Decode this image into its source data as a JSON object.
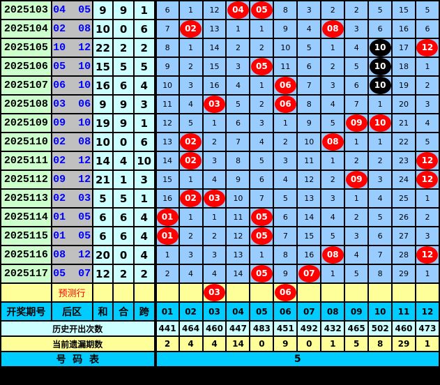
{
  "colors": {
    "period_bg": "#ccffcc",
    "back_bg": "#c0c0c0",
    "back_text": "#0000ff",
    "sum_bg": "#ccffff",
    "cell_bg": "#99ccff",
    "ball_red": "#ff0000",
    "ball_black": "#000000",
    "predict_bg": "#ffff99",
    "header_bg": "#00ccff"
  },
  "rows": [
    {
      "period": "2025103",
      "back": "04  05",
      "he": "9",
      "hezhi": "9",
      "kua": "1",
      "cells": [
        "6",
        "1",
        "12",
        "04",
        "05",
        "8",
        "3",
        "2",
        "2",
        "5",
        "15",
        "5"
      ],
      "hits": [
        "04",
        "05"
      ],
      "black_hits": []
    },
    {
      "period": "2025104",
      "back": "02  08",
      "he": "10",
      "hezhi": "0",
      "kua": "6",
      "cells": [
        "7",
        "02",
        "13",
        "1",
        "1",
        "9",
        "4",
        "08",
        "3",
        "6",
        "16",
        "6"
      ],
      "hits": [
        "02",
        "08"
      ],
      "black_hits": []
    },
    {
      "period": "2025105",
      "back": "10  12",
      "he": "22",
      "hezhi": "2",
      "kua": "2",
      "cells": [
        "8",
        "1",
        "14",
        "2",
        "2",
        "10",
        "5",
        "1",
        "4",
        "10",
        "17",
        "12"
      ],
      "hits": [
        "12"
      ],
      "black_hits": [
        "10"
      ]
    },
    {
      "period": "2025106",
      "back": "05  10",
      "he": "15",
      "hezhi": "5",
      "kua": "5",
      "cells": [
        "9",
        "2",
        "15",
        "3",
        "05",
        "11",
        "6",
        "2",
        "5",
        "10",
        "18",
        "1"
      ],
      "hits": [
        "05"
      ],
      "black_hits": [
        "10"
      ]
    },
    {
      "period": "2025107",
      "back": "06  10",
      "he": "16",
      "hezhi": "6",
      "kua": "4",
      "cells": [
        "10",
        "3",
        "16",
        "4",
        "1",
        "06",
        "7",
        "3",
        "6",
        "10",
        "19",
        "2"
      ],
      "hits": [
        "06"
      ],
      "black_hits": [
        "10"
      ]
    },
    {
      "period": "2025108",
      "back": "03  06",
      "he": "9",
      "hezhi": "9",
      "kua": "3",
      "cells": [
        "11",
        "4",
        "03",
        "5",
        "2",
        "06",
        "8",
        "4",
        "7",
        "1",
        "20",
        "3"
      ],
      "hits": [
        "03",
        "06"
      ],
      "black_hits": []
    },
    {
      "period": "2025109",
      "back": "09  10",
      "he": "19",
      "hezhi": "9",
      "kua": "1",
      "cells": [
        "12",
        "5",
        "1",
        "6",
        "3",
        "1",
        "9",
        "5",
        "09",
        "10",
        "21",
        "4"
      ],
      "hits": [
        "09",
        "10"
      ],
      "black_hits": []
    },
    {
      "period": "2025110",
      "back": "02  08",
      "he": "10",
      "hezhi": "0",
      "kua": "6",
      "cells": [
        "13",
        "02",
        "2",
        "7",
        "4",
        "2",
        "10",
        "08",
        "1",
        "1",
        "22",
        "5"
      ],
      "hits": [
        "02",
        "08"
      ],
      "black_hits": []
    },
    {
      "period": "2025111",
      "back": "02  12",
      "he": "14",
      "hezhi": "4",
      "kua": "10",
      "cells": [
        "14",
        "02",
        "3",
        "8",
        "5",
        "3",
        "11",
        "1",
        "2",
        "2",
        "23",
        "12"
      ],
      "hits": [
        "02",
        "12"
      ],
      "black_hits": []
    },
    {
      "period": "2025112",
      "back": "09  12",
      "he": "21",
      "hezhi": "1",
      "kua": "3",
      "cells": [
        "15",
        "1",
        "4",
        "9",
        "6",
        "4",
        "12",
        "2",
        "09",
        "3",
        "24",
        "12"
      ],
      "hits": [
        "09",
        "12"
      ],
      "black_hits": []
    },
    {
      "period": "2025113",
      "back": "02  03",
      "he": "5",
      "hezhi": "5",
      "kua": "1",
      "cells": [
        "16",
        "02",
        "03",
        "10",
        "7",
        "5",
        "13",
        "3",
        "1",
        "4",
        "25",
        "1"
      ],
      "hits": [
        "02",
        "03"
      ],
      "black_hits": []
    },
    {
      "period": "2025114",
      "back": "01  05",
      "he": "6",
      "hezhi": "6",
      "kua": "4",
      "cells": [
        "01",
        "1",
        "1",
        "11",
        "05",
        "6",
        "14",
        "4",
        "2",
        "5",
        "26",
        "2"
      ],
      "hits": [
        "01",
        "05"
      ],
      "black_hits": []
    },
    {
      "period": "2025115",
      "back": "01  05",
      "he": "6",
      "hezhi": "6",
      "kua": "4",
      "cells": [
        "01",
        "2",
        "2",
        "12",
        "05",
        "7",
        "15",
        "5",
        "3",
        "6",
        "27",
        "3"
      ],
      "hits": [
        "01",
        "05"
      ],
      "black_hits": []
    },
    {
      "period": "2025116",
      "back": "08  12",
      "he": "20",
      "hezhi": "0",
      "kua": "4",
      "cells": [
        "1",
        "3",
        "3",
        "13",
        "1",
        "8",
        "16",
        "08",
        "4",
        "7",
        "28",
        "12"
      ],
      "hits": [
        "08",
        "12"
      ],
      "black_hits": []
    },
    {
      "period": "2025117",
      "back": "05  07",
      "he": "12",
      "hezhi": "2",
      "kua": "2",
      "cells": [
        "2",
        "4",
        "4",
        "14",
        "05",
        "9",
        "07",
        "1",
        "5",
        "8",
        "29",
        "1"
      ],
      "hits": [
        "05",
        "07"
      ],
      "black_hits": []
    }
  ],
  "prediction": {
    "label": "预测行",
    "cells": [
      "",
      "",
      "03",
      "",
      "",
      "06",
      "",
      "",
      "",
      "",
      "",
      ""
    ]
  },
  "header": {
    "period": "开奖期号",
    "back": "后区",
    "he": "和",
    "hezhi": "合",
    "kua": "跨",
    "numbers": [
      "01",
      "02",
      "03",
      "04",
      "05",
      "06",
      "07",
      "08",
      "09",
      "10",
      "11",
      "12"
    ]
  },
  "history": {
    "label": "历史开出次数",
    "values": [
      "441",
      "464",
      "460",
      "447",
      "483",
      "451",
      "492",
      "432",
      "465",
      "502",
      "460",
      "473"
    ]
  },
  "missing": {
    "label": "当前遗漏期数",
    "values": [
      "2",
      "4",
      "4",
      "14",
      "0",
      "9",
      "0",
      "1",
      "5",
      "8",
      "29",
      "1"
    ]
  },
  "footer": {
    "label": "号  码  表",
    "value": "5"
  }
}
